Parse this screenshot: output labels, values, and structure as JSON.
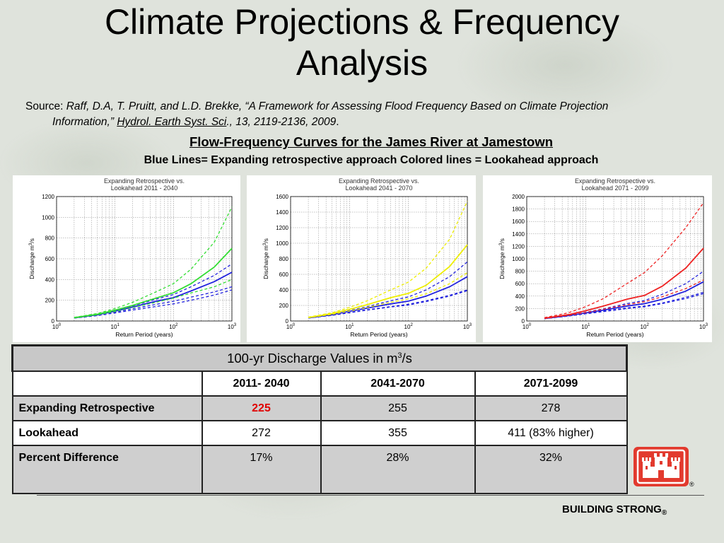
{
  "slide": {
    "title_line1": "Climate Projections & Frequency",
    "title_line2": "Analysis",
    "source_label": "Source: ",
    "source_citation_a": "Raff, D.A, T. Pruitt, and L.D. Brekke, “A Framework for Assessing Flood Frequency Based on Climate Projection",
    "source_citation_b": "Information,” ",
    "source_journal": "Hydrol. Earth Syst. Sci",
    "source_citation_c": "., 13, 2119-2136, 2009",
    "source_end": ".",
    "subtitle": "Flow-Frequency Curves for the James River at Jamestown",
    "caption": "Blue Lines= Expanding retrospective approach Colored lines = Lookahead approach",
    "footer": "BUILDING STRONG",
    "footer_mark": "®",
    "logo_mark": "®"
  },
  "table": {
    "title_main": "100-yr Discharge Values in m",
    "title_sup": "3",
    "title_tail": "/s",
    "columns": [
      "",
      "2011- 2040",
      "2041-2070",
      "2071-2099"
    ],
    "rows": [
      {
        "label": "Expanding Retrospective",
        "values": [
          "225",
          "255",
          "278"
        ]
      },
      {
        "label": "Lookahead",
        "values": [
          "272",
          "355",
          "411 (83% higher)"
        ]
      },
      {
        "label": "Percent Difference",
        "values": [
          "17%",
          "28%",
          "32%"
        ]
      }
    ]
  },
  "chart_data": [
    {
      "type": "line",
      "title": "Expanding Retrospective vs. Lookahead 2011 - 2040",
      "xlabel": "Return Period (years)",
      "ylabel": "Discharge m3/s",
      "xscale": "log",
      "xlim": [
        1,
        1000
      ],
      "ylim": [
        0,
        1200
      ],
      "yticks": [
        0,
        200,
        400,
        600,
        800,
        1000,
        1200
      ],
      "xtick_labels": [
        "10",
        "10",
        "10",
        "10"
      ],
      "xtick_exponents": [
        "0",
        "1",
        "2",
        "3"
      ],
      "accent": "#33dd33",
      "x": [
        2,
        5,
        10,
        20,
        50,
        100,
        200,
        500,
        1000
      ],
      "series": [
        {
          "color": "#2222dd",
          "style": "solid",
          "values": [
            30,
            60,
            95,
            135,
            190,
            225,
            290,
            380,
            470
          ]
        },
        {
          "color": "#2222dd",
          "style": "dashed",
          "values": [
            30,
            62,
            100,
            145,
            210,
            255,
            330,
            440,
            550
          ]
        },
        {
          "color": "#2222dd",
          "style": "dashed",
          "values": [
            28,
            55,
            85,
            118,
            160,
            190,
            230,
            280,
            330
          ]
        },
        {
          "color": "#2222dd",
          "style": "dashed",
          "values": [
            28,
            52,
            78,
            105,
            140,
            165,
            200,
            250,
            300
          ]
        },
        {
          "color": "#33dd33",
          "style": "solid",
          "values": [
            32,
            65,
            105,
            150,
            220,
            272,
            360,
            520,
            700
          ]
        },
        {
          "color": "#33dd33",
          "style": "dashed",
          "values": [
            35,
            72,
            120,
            180,
            280,
            360,
            500,
            760,
            1100
          ]
        },
        {
          "color": "#33dd33",
          "style": "dashed",
          "values": [
            30,
            60,
            92,
            130,
            180,
            220,
            270,
            330,
            400
          ]
        }
      ]
    },
    {
      "type": "line",
      "title": "Expanding Retrospective vs. Lookahead 2041 - 2070",
      "xlabel": "Return Period (years)",
      "ylabel": "Discharge m3/s",
      "xscale": "log",
      "xlim": [
        1,
        1000
      ],
      "ylim": [
        0,
        1600
      ],
      "yticks": [
        0,
        200,
        400,
        600,
        800,
        1000,
        1200,
        1400,
        1600
      ],
      "xtick_labels": [
        "10",
        "10",
        "10",
        "10"
      ],
      "xtick_exponents": [
        "0",
        "1",
        "2",
        "3"
      ],
      "accent": "#eeee00",
      "x": [
        2,
        5,
        10,
        20,
        50,
        100,
        200,
        500,
        1000
      ],
      "series": [
        {
          "color": "#2222dd",
          "style": "solid",
          "values": [
            40,
            80,
            125,
            165,
            220,
            255,
            320,
            440,
            570
          ]
        },
        {
          "color": "#2222dd",
          "style": "dashed",
          "values": [
            40,
            85,
            135,
            185,
            260,
            310,
            400,
            570,
            760
          ]
        },
        {
          "color": "#2222dd",
          "style": "dashed",
          "values": [
            38,
            75,
            110,
            145,
            185,
            215,
            260,
            330,
            400
          ]
        },
        {
          "color": "#2222dd",
          "style": "dashed",
          "values": [
            38,
            72,
            105,
            140,
            180,
            205,
            250,
            320,
            390
          ]
        },
        {
          "color": "#eeee00",
          "style": "solid",
          "values": [
            45,
            95,
            150,
            210,
            300,
            355,
            460,
            700,
            980
          ]
        },
        {
          "color": "#eeee00",
          "style": "dashed",
          "values": [
            50,
            105,
            175,
            260,
            400,
            500,
            680,
            1050,
            1540
          ]
        },
        {
          "color": "#eeee00",
          "style": "dashed",
          "values": [
            42,
            85,
            128,
            175,
            240,
            285,
            350,
            480,
            620
          ]
        }
      ]
    },
    {
      "type": "line",
      "title": "Expanding Retrospective vs. Lookahead 2071 - 2099",
      "xlabel": "Return Period (years)",
      "ylabel": "Discharge m3/s",
      "xscale": "log",
      "xlim": [
        1,
        1000
      ],
      "ylim": [
        0,
        2000
      ],
      "yticks": [
        0,
        200,
        400,
        600,
        800,
        1000,
        1200,
        1400,
        1600,
        1800,
        2000
      ],
      "xtick_labels": [
        "10",
        "10",
        "10",
        "10"
      ],
      "xtick_exponents": [
        "0",
        "1",
        "2",
        "3"
      ],
      "accent": "#ee2222",
      "x": [
        2,
        5,
        10,
        20,
        50,
        100,
        200,
        500,
        1000
      ],
      "series": [
        {
          "color": "#2222dd",
          "style": "solid",
          "values": [
            40,
            85,
            130,
            175,
            240,
            278,
            350,
            480,
            630
          ]
        },
        {
          "color": "#2222dd",
          "style": "dashed",
          "values": [
            42,
            90,
            140,
            195,
            280,
            330,
            430,
            600,
            800
          ]
        },
        {
          "color": "#2222dd",
          "style": "dashed",
          "values": [
            38,
            80,
            120,
            160,
            210,
            240,
            290,
            380,
            460
          ]
        },
        {
          "color": "#2222dd",
          "style": "dashed",
          "values": [
            38,
            78,
            115,
            150,
            200,
            230,
            280,
            360,
            440
          ]
        },
        {
          "color": "#ee2222",
          "style": "solid",
          "values": [
            45,
            100,
            165,
            240,
            350,
            411,
            560,
            850,
            1170
          ]
        },
        {
          "color": "#ee2222",
          "style": "dashed",
          "values": [
            55,
            130,
            230,
            360,
            600,
            780,
            1050,
            1500,
            1900
          ]
        },
        {
          "color": "#ee2222",
          "style": "dashed",
          "values": [
            40,
            90,
            135,
            190,
            260,
            310,
            390,
            520,
            660
          ]
        }
      ]
    }
  ]
}
